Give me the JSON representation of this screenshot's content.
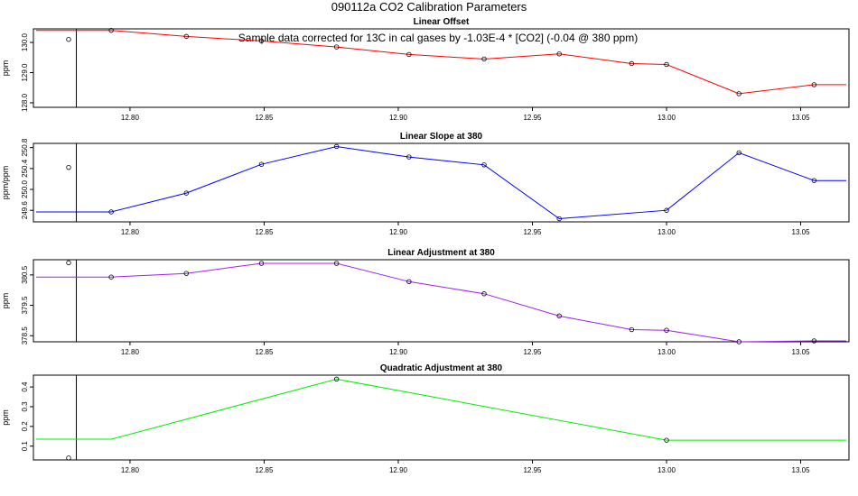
{
  "figure": {
    "title": "090112a   CO2 Calibration Parameters",
    "annotation": "Sample data corrected for 13C in cal gases by -1.03E-4 * [CO2] (-0.04 @ 380 ppm)"
  },
  "chart_data": [
    {
      "type": "line",
      "title": "Linear Offset",
      "xlabel": "",
      "ylabel": "ppm",
      "xlim": [
        12.764,
        13.068
      ],
      "ylim": [
        127.85,
        130.45
      ],
      "xticks": [
        12.8,
        12.85,
        12.9,
        12.95,
        13.0,
        13.05
      ],
      "xtick_labels": [
        "12.80",
        "12.85",
        "12.90",
        "12.95",
        "13.00",
        "13.05"
      ],
      "yticks": [
        128.0,
        129.0,
        130.0
      ],
      "ytick_labels": [
        "128.0",
        "129.0",
        "130.0"
      ],
      "vline_x": 12.78,
      "color": "#ff0000",
      "x": [
        12.765,
        12.793,
        12.821,
        12.849,
        12.877,
        12.904,
        12.932,
        12.96,
        12.987,
        13.0,
        13.027,
        13.055,
        13.067
      ],
      "y": [
        130.4,
        130.4,
        130.2,
        130.05,
        129.85,
        129.6,
        129.45,
        129.62,
        129.3,
        129.27,
        128.3,
        128.6,
        128.6
      ],
      "points_x": [
        12.793,
        12.821,
        12.849,
        12.877,
        12.904,
        12.932,
        12.96,
        12.987,
        13.0,
        13.027,
        13.055
      ],
      "points_y": [
        130.4,
        130.2,
        130.05,
        129.85,
        129.6,
        129.45,
        129.62,
        129.3,
        129.27,
        128.3,
        128.6
      ],
      "extra_point": {
        "x": 12.765,
        "y": 130.1
      }
    },
    {
      "type": "line",
      "title": "Linear Slope at 380",
      "xlabel": "",
      "ylabel": "ppm/ppm",
      "xlim": [
        12.764,
        13.068
      ],
      "ylim": [
        249.38,
        250.88
      ],
      "xticks": [
        12.8,
        12.85,
        12.9,
        12.95,
        13.0,
        13.05
      ],
      "xtick_labels": [
        "12.80",
        "12.85",
        "12.90",
        "12.95",
        "13.00",
        "13.05"
      ],
      "yticks": [
        249.6,
        250.0,
        250.4,
        250.8
      ],
      "ytick_labels": [
        "249.6",
        "250.0",
        "250.4",
        "250.8"
      ],
      "vline_x": 12.78,
      "color": "#0000ff",
      "x": [
        12.765,
        12.793,
        12.821,
        12.849,
        12.877,
        12.904,
        12.932,
        12.96,
        13.0,
        13.027,
        13.055,
        13.067
      ],
      "y": [
        249.57,
        249.57,
        249.93,
        250.48,
        250.82,
        250.62,
        250.47,
        249.44,
        249.6,
        250.7,
        250.17,
        250.17
      ],
      "points_x": [
        12.793,
        12.821,
        12.849,
        12.877,
        12.904,
        12.932,
        12.96,
        13.0,
        13.027,
        13.055
      ],
      "points_y": [
        249.57,
        249.93,
        250.48,
        250.82,
        250.62,
        250.47,
        249.44,
        249.6,
        250.7,
        250.17
      ],
      "extra_point": {
        "x": 12.765,
        "y": 250.42
      }
    },
    {
      "type": "line",
      "title": "Linear Adjustment at 380",
      "xlabel": "",
      "ylabel": "ppm",
      "xlim": [
        12.764,
        13.068
      ],
      "ylim": [
        378.3,
        381.0
      ],
      "xticks": [
        12.8,
        12.85,
        12.9,
        12.95,
        13.0,
        13.05
      ],
      "xtick_labels": [
        "12.80",
        "12.85",
        "12.90",
        "12.95",
        "13.00",
        "13.05"
      ],
      "yticks": [
        378.5,
        379.5,
        380.5
      ],
      "ytick_labels": [
        "378.5",
        "379.5",
        "380.5"
      ],
      "vline_x": 12.78,
      "color": "#a020f0",
      "x": [
        12.765,
        12.793,
        12.821,
        12.849,
        12.877,
        12.904,
        12.932,
        12.96,
        12.987,
        13.0,
        13.027,
        13.055,
        13.067
      ],
      "y": [
        380.43,
        380.43,
        380.55,
        380.88,
        380.88,
        380.28,
        379.88,
        379.15,
        378.7,
        378.68,
        378.3,
        378.33,
        378.33
      ],
      "points_x": [
        12.793,
        12.821,
        12.849,
        12.877,
        12.904,
        12.932,
        12.96,
        12.987,
        13.0,
        13.027,
        13.055
      ],
      "points_y": [
        380.43,
        380.55,
        380.88,
        380.88,
        380.28,
        379.88,
        379.15,
        378.7,
        378.68,
        378.3,
        378.33
      ],
      "extra_point": {
        "x": 12.765,
        "y": 380.9
      }
    },
    {
      "type": "line",
      "title": "Quadratic Adjustment at 380",
      "xlabel": "",
      "ylabel": "ppm",
      "xlim": [
        12.764,
        13.068
      ],
      "ylim": [
        0.03,
        0.46
      ],
      "xticks": [
        12.8,
        12.85,
        12.9,
        12.95,
        13.0,
        13.05
      ],
      "xtick_labels": [
        "12.80",
        "12.85",
        "12.90",
        "12.95",
        "13.00",
        "13.05"
      ],
      "yticks": [
        0.1,
        0.2,
        0.3,
        0.4
      ],
      "ytick_labels": [
        "0.1",
        "0.2",
        "0.3",
        "0.4"
      ],
      "vline_x": 12.78,
      "color": "#00ee00",
      "x": [
        12.765,
        12.793,
        12.877,
        13.0,
        13.067
      ],
      "y": [
        0.135,
        0.135,
        0.44,
        0.13,
        0.13
      ],
      "points_x": [
        12.877,
        13.0
      ],
      "points_y": [
        0.44,
        0.13
      ],
      "extra_point": {
        "x": 12.765,
        "y": 0.04
      }
    }
  ]
}
